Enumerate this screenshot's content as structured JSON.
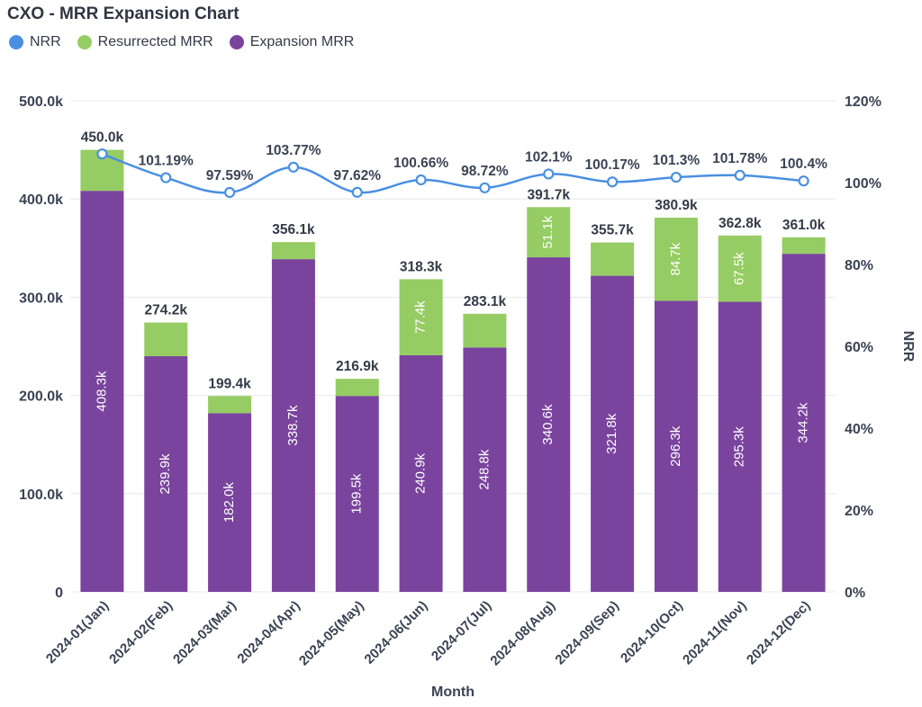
{
  "title": "CXO - MRR Expansion Chart",
  "legend": [
    {
      "label": "NRR",
      "color": "#4a90e2"
    },
    {
      "label": "Resurrected MRR",
      "color": "#96cc64"
    },
    {
      "label": "Expansion MRR",
      "color": "#7a449e"
    }
  ],
  "colors": {
    "expansion": "#7a449e",
    "resurrected": "#96cc64",
    "nrr_line": "#4a90e2",
    "grid": "#e6e8ec"
  },
  "chart_data": {
    "type": "bar",
    "stacked": true,
    "title": "CXO - MRR Expansion Chart",
    "xlabel": "Month",
    "ylabel": "",
    "y2label": "NRR",
    "categories": [
      "2024-01(Jan)",
      "2024-02(Feb)",
      "2024-03(Mar)",
      "2024-04(Apr)",
      "2024-05(May)",
      "2024-06(Jun)",
      "2024-07(Jul)",
      "2024-08(Aug)",
      "2024-09(Sep)",
      "2024-10(Oct)",
      "2024-11(Nov)",
      "2024-12(Dec)"
    ],
    "ylim": [
      0,
      500000
    ],
    "y2lim": [
      0,
      120
    ],
    "yticks": [
      "0",
      "100.0k",
      "200.0k",
      "300.0k",
      "400.0k",
      "500.0k"
    ],
    "y2ticks": [
      "0%",
      "20%",
      "40%",
      "60%",
      "80%",
      "100%",
      "120%"
    ],
    "series": [
      {
        "name": "Expansion MRR",
        "type": "bar",
        "values": [
          408300,
          239900,
          182000,
          338700,
          199500,
          240900,
          248800,
          340600,
          321800,
          296300,
          295300,
          344200
        ],
        "labels": [
          "408.3k",
          "239.9k",
          "182.0k",
          "338.7k",
          "199.5k",
          "240.9k",
          "248.8k",
          "340.6k",
          "321.8k",
          "296.3k",
          "295.3k",
          "344.2k"
        ]
      },
      {
        "name": "Resurrected MRR",
        "type": "bar",
        "values": [
          41700,
          34300,
          17400,
          17400,
          17400,
          77400,
          34300,
          51100,
          33900,
          84700,
          67500,
          16800
        ],
        "labels": [
          "",
          "",
          "",
          "",
          "",
          "77.4k",
          "",
          "51.1k",
          "",
          "84.7k",
          "67.5k",
          ""
        ]
      },
      {
        "name": "NRR",
        "type": "line",
        "axis": "right",
        "values": [
          107,
          101.19,
          97.59,
          103.77,
          97.62,
          100.66,
          98.72,
          102.1,
          100.17,
          101.3,
          101.78,
          100.4
        ],
        "labels": [
          "",
          "101.19%",
          "97.59%",
          "103.77%",
          "97.62%",
          "100.66%",
          "98.72%",
          "102.1%",
          "100.17%",
          "101.3%",
          "101.78%",
          "100.4%"
        ]
      }
    ],
    "totals": [
      "450.0k",
      "274.2k",
      "199.4k",
      "356.1k",
      "216.9k",
      "318.3k",
      "283.1k",
      "391.7k",
      "355.7k",
      "380.9k",
      "362.8k",
      "361.0k"
    ],
    "grid": true,
    "legend_position": "top-left"
  }
}
